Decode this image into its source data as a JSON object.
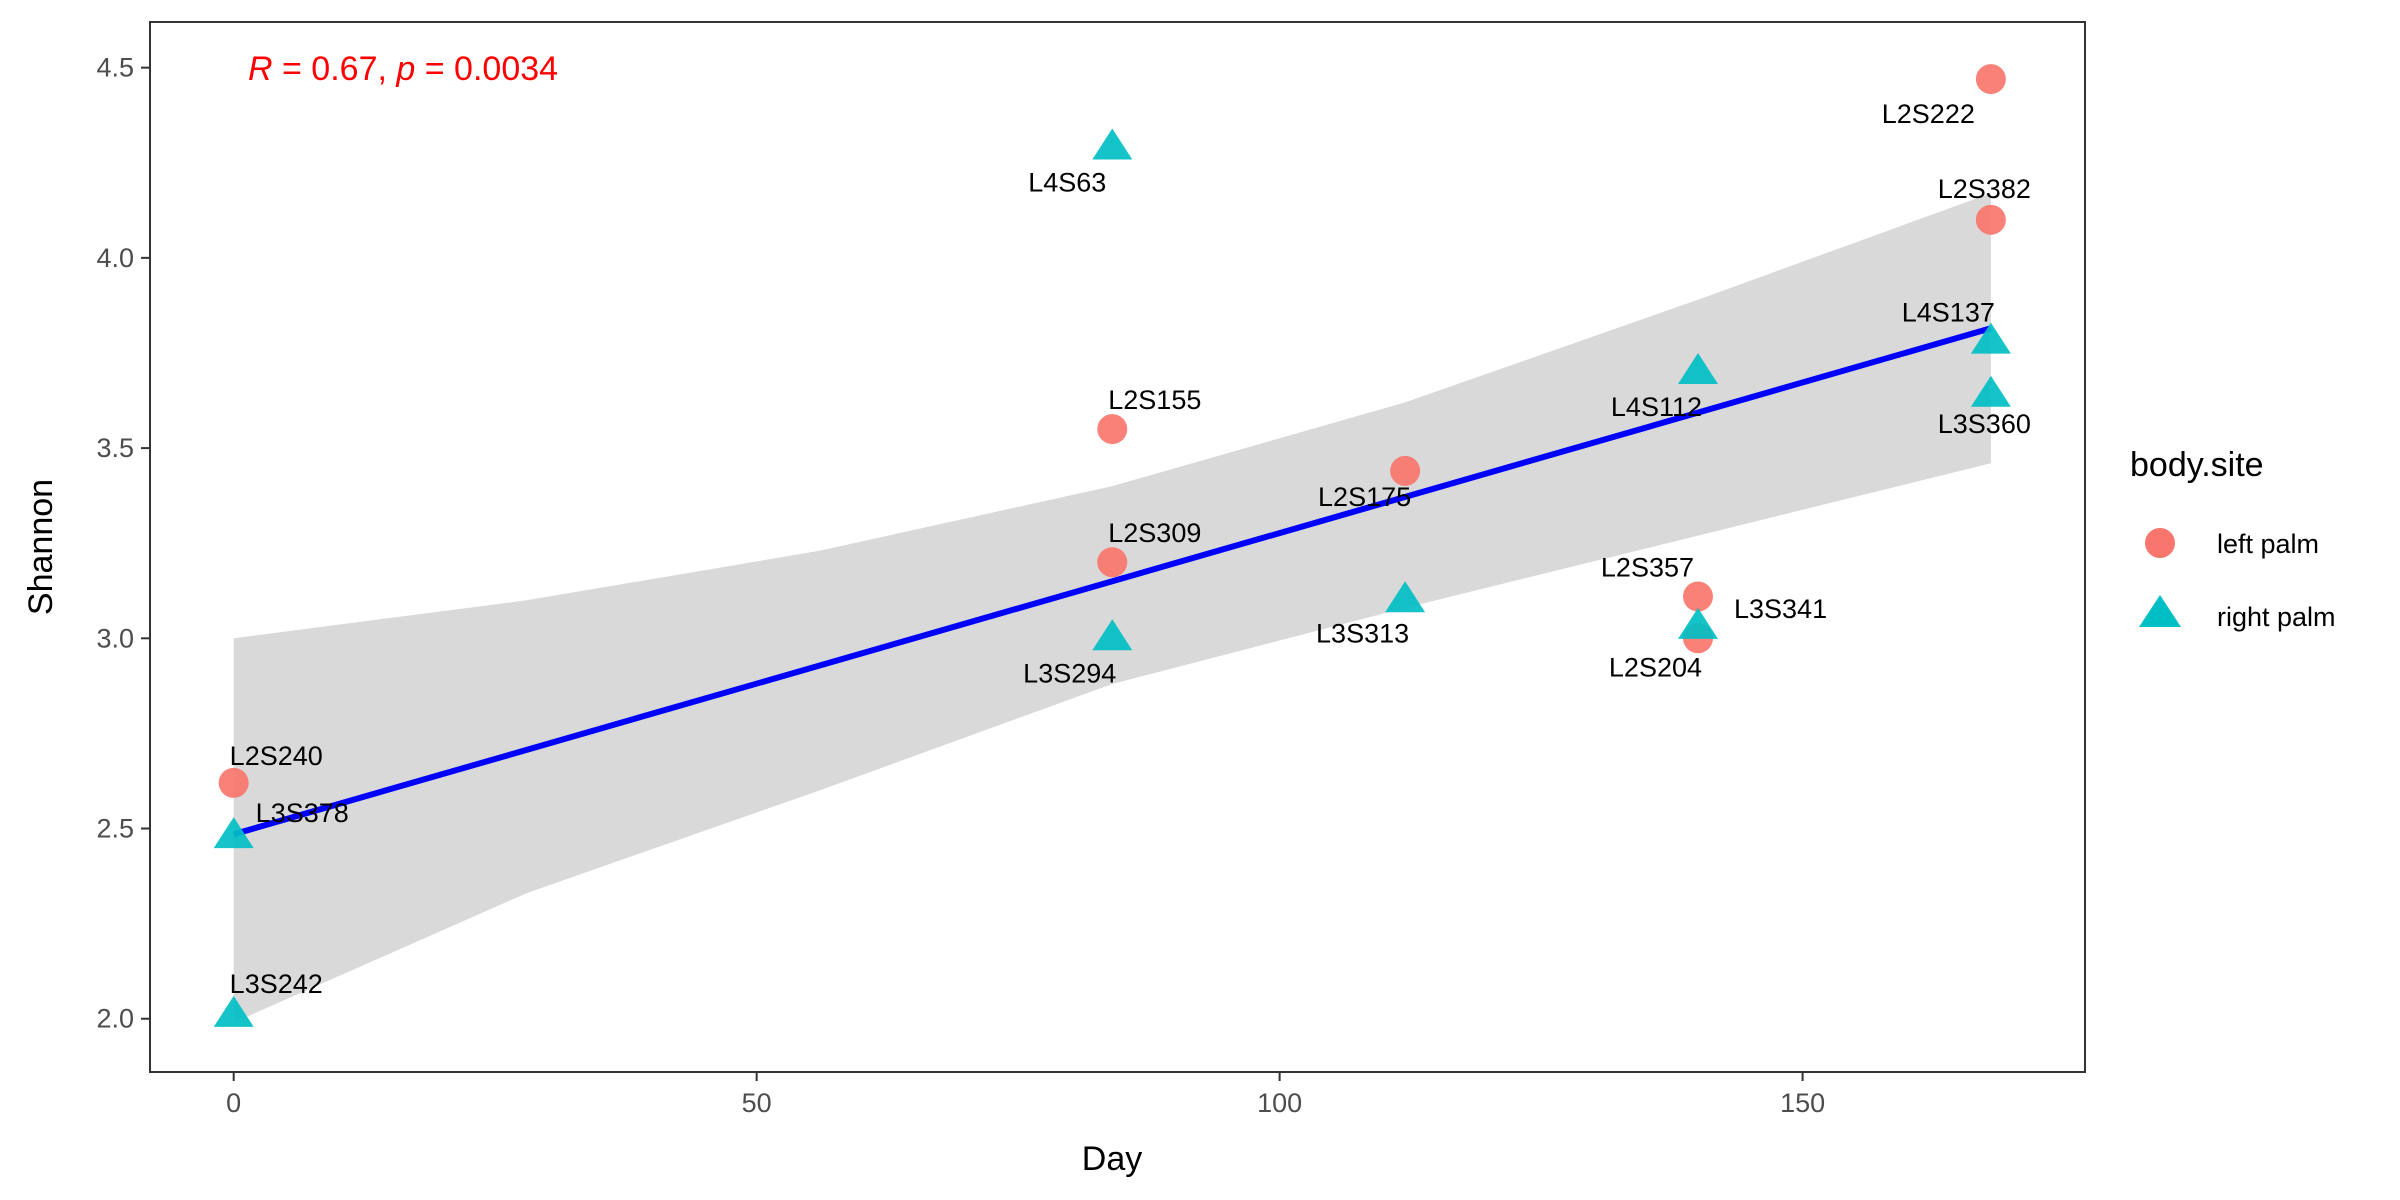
{
  "chart_data": {
    "type": "scatter",
    "xlabel": "Day",
    "ylabel": "Shannon",
    "xlim": [
      -8,
      177
    ],
    "ylim": [
      1.86,
      4.62
    ],
    "x_ticks": [
      0,
      50,
      100,
      150
    ],
    "y_ticks": [
      2.0,
      2.5,
      3.0,
      3.5,
      4.0,
      4.5
    ],
    "x_tick_labels": [
      "0",
      "50",
      "100",
      "150"
    ],
    "y_tick_labels": [
      "2.0",
      "2.5",
      "3.0",
      "3.5",
      "4.0",
      "4.5"
    ],
    "grid": false,
    "legend": {
      "title": "body.site",
      "position": "right"
    },
    "stat": {
      "r_symbol": "R",
      "r_value": " = 0.67, ",
      "p_symbol": "p",
      "p_value": " = 0.0034",
      "color": "#ff0000"
    },
    "series": [
      {
        "name": "left palm",
        "marker": "circle",
        "color": "#f8766d",
        "points": [
          {
            "label": "L2S240",
            "x": 0,
            "y": 2.62
          },
          {
            "label": "L2S155",
            "x": 84,
            "y": 3.55
          },
          {
            "label": "L2S309",
            "x": 84,
            "y": 3.2
          },
          {
            "label": "L2S175",
            "x": 112,
            "y": 3.44
          },
          {
            "label": "L2S357",
            "x": 140,
            "y": 3.11
          },
          {
            "label": "L2S204",
            "x": 140,
            "y": 3.0
          },
          {
            "label": "L2S222",
            "x": 168,
            "y": 4.47
          },
          {
            "label": "L2S382",
            "x": 168,
            "y": 4.1
          }
        ]
      },
      {
        "name": "right palm",
        "marker": "triangle",
        "color": "#00bfc4",
        "points": [
          {
            "label": "L3S378",
            "x": 0,
            "y": 2.48
          },
          {
            "label": "L3S242",
            "x": 0,
            "y": 2.01
          },
          {
            "label": "L4S63",
            "x": 84,
            "y": 4.29
          },
          {
            "label": "L3S294",
            "x": 84,
            "y": 3.0
          },
          {
            "label": "L3S313",
            "x": 112,
            "y": 3.1
          },
          {
            "label": "L4S112",
            "x": 140,
            "y": 3.7
          },
          {
            "label": "L3S341",
            "x": 140,
            "y": 3.03
          },
          {
            "label": "L4S137",
            "x": 168,
            "y": 3.78
          },
          {
            "label": "L3S360",
            "x": 168,
            "y": 3.64
          }
        ]
      }
    ],
    "regression": {
      "color": "#0000ff",
      "band_color": "#d9d9d9",
      "line": [
        [
          0,
          2.485
        ],
        [
          168,
          3.815
        ]
      ],
      "band": [
        {
          "x": 0,
          "lo": 1.99,
          "hi": 3.0
        },
        {
          "x": 28,
          "lo": 2.33,
          "hi": 3.1
        },
        {
          "x": 56,
          "lo": 2.6,
          "hi": 3.23
        },
        {
          "x": 84,
          "lo": 2.88,
          "hi": 3.4
        },
        {
          "x": 112,
          "lo": 3.08,
          "hi": 3.62
        },
        {
          "x": 140,
          "lo": 3.27,
          "hi": 3.89
        },
        {
          "x": 168,
          "lo": 3.46,
          "hi": 4.17
        }
      ]
    }
  }
}
